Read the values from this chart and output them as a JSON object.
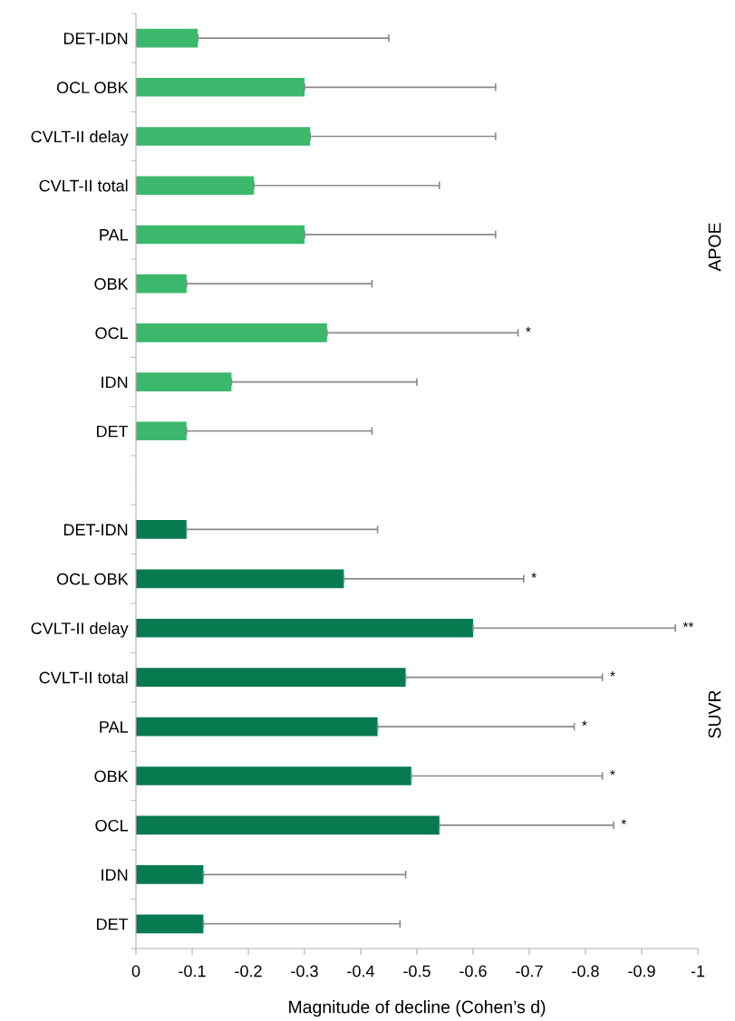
{
  "chart_data": [
    {
      "type": "bar",
      "orientation": "horizontal",
      "ylabel": "APOE",
      "tick_labels": "y",
      "categories": [
        "DET-IDN",
        "OCL OBK",
        "CVLT-II delay",
        "CVLT-II total",
        "PAL",
        "OBK",
        "OCL",
        "IDN",
        "DET"
      ],
      "values": [
        -0.11,
        -0.3,
        -0.31,
        -0.21,
        -0.3,
        -0.09,
        -0.34,
        -0.17,
        -0.09
      ],
      "errors": [
        [
          -0.45,
          -0.11
        ],
        [
          -0.64,
          -0.3
        ],
        [
          -0.64,
          -0.31
        ],
        [
          -0.54,
          -0.21
        ],
        [
          -0.64,
          -0.3
        ],
        [
          -0.42,
          -0.09
        ],
        [
          -0.68,
          -0.34
        ],
        [
          -0.5,
          -0.17
        ],
        [
          -0.42,
          -0.09
        ]
      ],
      "color": "#3cb86c",
      "xlim": [
        0,
        -1
      ],
      "annotations": [
        {
          "text": "*",
          "x": -0.68,
          "y": "OCL"
        }
      ]
    },
    {
      "type": "bar",
      "orientation": "horizontal",
      "ylabel": "SUVR",
      "xlabel": "Magnitude of decline (Cohen’s d)",
      "categories": [
        "DET-IDN",
        "OCL OBK",
        "CVLT-II delay",
        "CVLT-II total",
        "PAL",
        "OBK",
        "OCL",
        "IDN",
        "DET"
      ],
      "values": [
        -0.09,
        -0.37,
        -0.6,
        -0.48,
        -0.43,
        -0.49,
        -0.54,
        -0.12,
        -0.12
      ],
      "errors": [
        [
          -0.43,
          -0.09
        ],
        [
          -0.69,
          -0.37
        ],
        [
          -0.96,
          -0.6
        ],
        [
          -0.83,
          -0.48
        ],
        [
          -0.78,
          -0.43
        ],
        [
          -0.83,
          -0.49
        ],
        [
          -0.85,
          -0.54
        ],
        [
          -0.48,
          -0.12
        ],
        [
          -0.47,
          -0.12
        ]
      ],
      "color": "#087a4f",
      "xlim": [
        0,
        -1
      ],
      "xticks": [
        0,
        -0.1,
        -0.2,
        -0.3,
        -0.4,
        -0.5,
        -0.6,
        -0.7,
        -0.8,
        -0.9,
        -1
      ],
      "annotations": [
        {
          "text": "*",
          "x": -0.69,
          "y": "OCL OBK"
        },
        {
          "text": "**",
          "x": -0.96,
          "y": "CVLT-II delay"
        },
        {
          "text": "*",
          "x": -0.83,
          "y": "CVLT-II total"
        },
        {
          "text": "*",
          "x": -0.78,
          "y": "PAL"
        },
        {
          "text": "*",
          "x": -0.83,
          "y": "OBK"
        },
        {
          "text": "*",
          "x": -0.85,
          "y": "OCL"
        }
      ]
    }
  ]
}
